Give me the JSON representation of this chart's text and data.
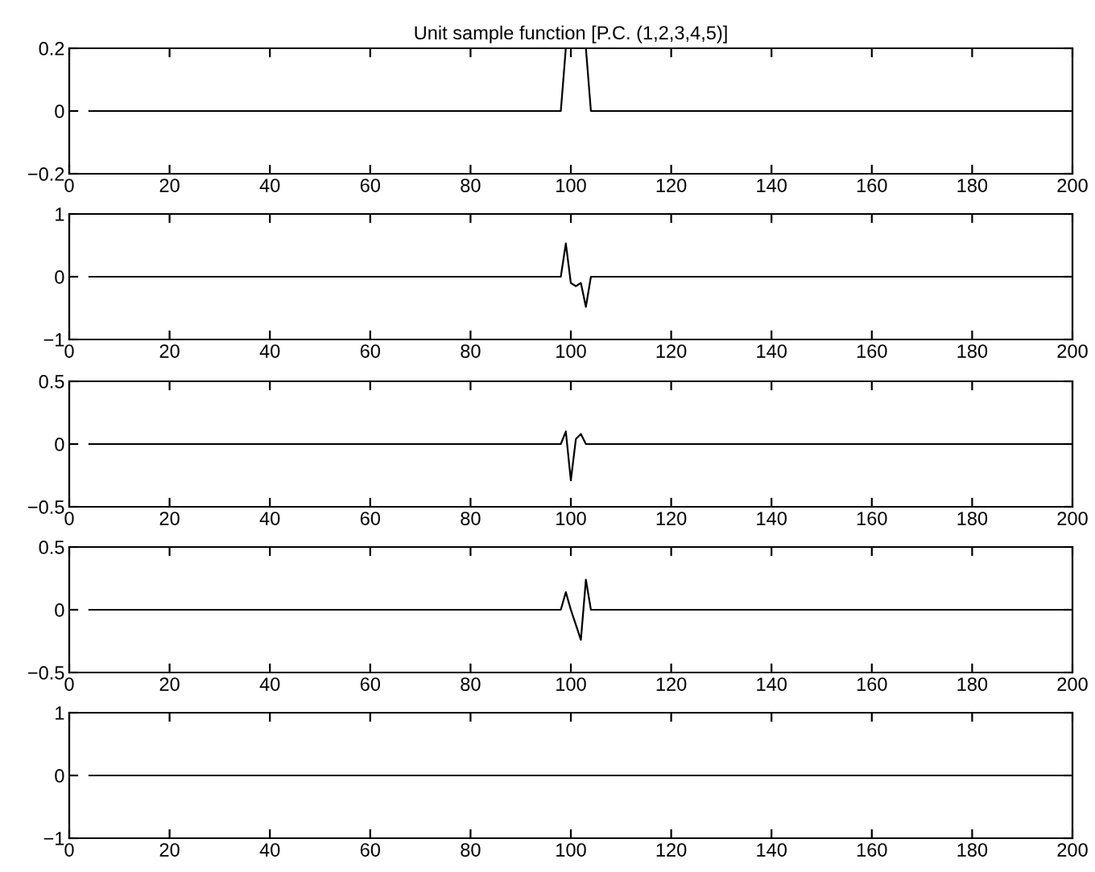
{
  "chart_data": [
    {
      "type": "line",
      "title": "Unit sample function [P.C. (1,2,3,4,5)]",
      "x": [
        4,
        98,
        99,
        100,
        101,
        102,
        103,
        104,
        200
      ],
      "series": [
        {
          "color": "#000000",
          "values": [
            0,
            0,
            0.2,
            0.2,
            0.2,
            0.2,
            0.2,
            0,
            0
          ]
        }
      ],
      "xlim": [
        0,
        200
      ],
      "xticks": [
        0,
        20,
        40,
        60,
        80,
        100,
        120,
        140,
        160,
        180,
        200
      ],
      "ylim": [
        -0.2,
        0.2
      ],
      "yticks": [
        -0.2,
        0,
        0.2
      ],
      "grid": false,
      "legend": false
    },
    {
      "type": "line",
      "x": [
        4,
        98,
        99,
        100,
        101,
        102,
        103,
        104,
        200
      ],
      "series": [
        {
          "color": "#000000",
          "values": [
            0,
            0,
            0.53,
            -0.1,
            -0.15,
            -0.1,
            -0.48,
            0,
            0
          ]
        }
      ],
      "xlim": [
        0,
        200
      ],
      "xticks": [
        0,
        20,
        40,
        60,
        80,
        100,
        120,
        140,
        160,
        180,
        200
      ],
      "ylim": [
        -1,
        1
      ],
      "yticks": [
        -1,
        0,
        1
      ],
      "grid": false,
      "legend": false
    },
    {
      "type": "line",
      "x": [
        4,
        98,
        99,
        100,
        101,
        102,
        103,
        104,
        200
      ],
      "series": [
        {
          "color": "#000000",
          "values": [
            0,
            0,
            0.1,
            -0.29,
            0.04,
            0.08,
            0,
            0,
            0
          ]
        }
      ],
      "xlim": [
        0,
        200
      ],
      "xticks": [
        0,
        20,
        40,
        60,
        80,
        100,
        120,
        140,
        160,
        180,
        200
      ],
      "ylim": [
        -0.5,
        0.5
      ],
      "yticks": [
        -0.5,
        0,
        0.5
      ],
      "grid": false,
      "legend": false
    },
    {
      "type": "line",
      "x": [
        4,
        98,
        99,
        100,
        101,
        102,
        103,
        104,
        200
      ],
      "series": [
        {
          "color": "#000000",
          "values": [
            0,
            0,
            0.14,
            0,
            -0.12,
            -0.24,
            0.24,
            0,
            0
          ]
        }
      ],
      "xlim": [
        0,
        200
      ],
      "xticks": [
        0,
        20,
        40,
        60,
        80,
        100,
        120,
        140,
        160,
        180,
        200
      ],
      "ylim": [
        -0.5,
        0.5
      ],
      "yticks": [
        -0.5,
        0,
        0.5
      ],
      "grid": false,
      "legend": false
    },
    {
      "type": "line",
      "x": [
        4,
        200
      ],
      "series": [
        {
          "color": "#000000",
          "values": [
            0,
            0
          ]
        }
      ],
      "xlim": [
        0,
        200
      ],
      "xticks": [
        0,
        20,
        40,
        60,
        80,
        100,
        120,
        140,
        160,
        180,
        200
      ],
      "ylim": [
        -1,
        1
      ],
      "yticks": [
        -1,
        0,
        1
      ],
      "grid": false,
      "legend": false
    }
  ]
}
